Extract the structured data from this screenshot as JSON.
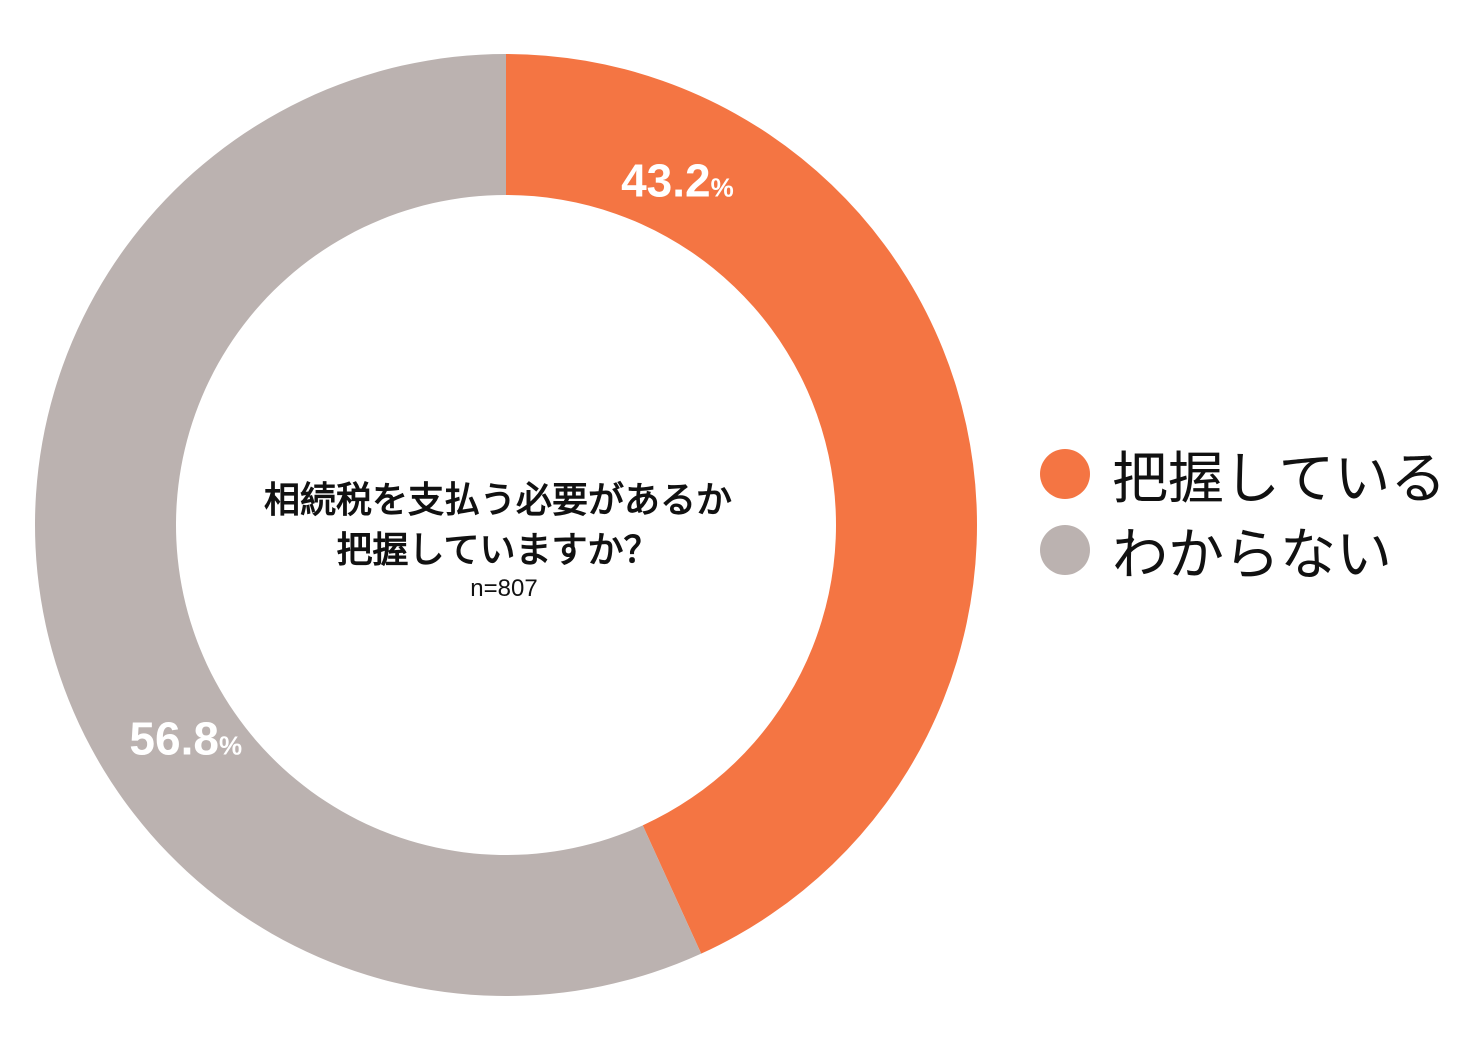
{
  "chart_data": {
    "type": "pie",
    "variant": "donut",
    "title_lines": [
      "相続税を支払う必要があるか",
      "把握していますか？"
    ],
    "subtitle": "n=807",
    "categories": [
      "把握している",
      "わからない"
    ],
    "values": [
      43.2,
      56.8
    ],
    "value_labels": [
      "43.2",
      "56.8"
    ],
    "unit": "%",
    "colors": [
      "#F47543",
      "#BBB2B0"
    ],
    "start_angle": "12 o'clock",
    "direction": "clockwise",
    "legend_position": "right"
  }
}
